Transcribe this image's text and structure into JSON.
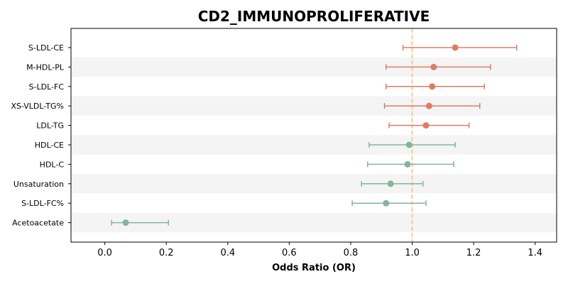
{
  "chart_data": {
    "type": "forest",
    "title": "CD2_IMMUNOPROLIFERATIVE",
    "xlabel": "Odds Ratio (OR)",
    "ylabel": "",
    "xlim": [
      -0.11,
      1.47
    ],
    "xticks": [
      0.0,
      0.2,
      0.4,
      0.6,
      0.8,
      1.0,
      1.2,
      1.4
    ],
    "xtick_labels": [
      "0.0",
      "0.2",
      "0.4",
      "0.6",
      "0.8",
      "1.0",
      "1.2",
      "1.4"
    ],
    "reference_line": 1.0,
    "reference_color": "#f5c784",
    "stripe_color": "#f4f4f4",
    "colors": {
      "positive": "#e07b65",
      "negative": "#85b49a"
    },
    "categories": [
      "S-LDL-CE",
      "M-HDL-PL",
      "S-LDL-FC",
      "XS-VLDL-TG%",
      "LDL-TG",
      "HDL-CE",
      "HDL-C",
      "Unsaturation",
      "S-LDL-FC%",
      "Acetoacetate"
    ],
    "values": [
      1.14,
      1.07,
      1.065,
      1.055,
      1.045,
      0.99,
      0.985,
      0.93,
      0.915,
      0.068
    ],
    "lower": [
      0.97,
      0.915,
      0.915,
      0.91,
      0.925,
      0.86,
      0.855,
      0.835,
      0.805,
      0.022
    ],
    "upper": [
      1.34,
      1.255,
      1.235,
      1.22,
      1.185,
      1.14,
      1.135,
      1.035,
      1.045,
      0.207
    ]
  }
}
